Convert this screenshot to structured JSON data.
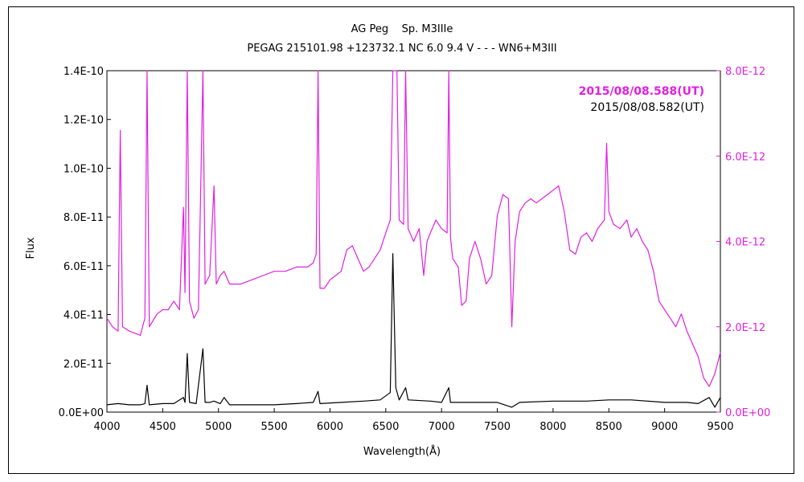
{
  "chart_data": {
    "type": "line",
    "title": "AG Peg    Sp. M3IIIe",
    "subtitle": "PEGAG 215101.98 +123732.1 NC 6.0 9.4 V - - - WN6+M3III",
    "xlabel": "Wavelength(Å)",
    "ylabel": "Flux",
    "xlim": [
      4000,
      9500
    ],
    "ylim_left": [
      0,
      1.4e-10
    ],
    "ylim_right": [
      0,
      8e-12
    ],
    "x_ticks": [
      "4000",
      "4500",
      "5000",
      "5500",
      "6000",
      "6500",
      "7000",
      "7500",
      "8000",
      "8500",
      "9000",
      "9500"
    ],
    "y_ticks_left": [
      "0.0E+00",
      "2.0E-11",
      "4.0E-11",
      "6.0E-11",
      "8.0E-11",
      "1.0E-10",
      "1.2E-10",
      "1.4E-10"
    ],
    "y_ticks_right": [
      "0.0E+00",
      "2.0E-12",
      "4.0E-12",
      "6.0E-12",
      "8.0E-12"
    ],
    "grid": false,
    "legend_position": "top-right",
    "colors": {
      "magenta": "#e020e0",
      "black": "#000000"
    },
    "series": [
      {
        "name": "2015/08/08.588(UT)",
        "axis": "right",
        "color": "#e020e0",
        "points": [
          [
            4000,
            2.2e-12
          ],
          [
            4050,
            2e-12
          ],
          [
            4100,
            1.9e-12
          ],
          [
            4120,
            6.6e-12
          ],
          [
            4140,
            2e-12
          ],
          [
            4200,
            1.9e-12
          ],
          [
            4300,
            1.8e-12
          ],
          [
            4340,
            2.2e-12
          ],
          [
            4360,
            8e-12
          ],
          [
            4380,
            2e-12
          ],
          [
            4450,
            2.3e-12
          ],
          [
            4500,
            2.4e-12
          ],
          [
            4550,
            2.4e-12
          ],
          [
            4600,
            2.6e-12
          ],
          [
            4650,
            2.4e-12
          ],
          [
            4686,
            4.8e-12
          ],
          [
            4700,
            2.8e-12
          ],
          [
            4720,
            8e-12
          ],
          [
            4740,
            2.6e-12
          ],
          [
            4780,
            2.2e-12
          ],
          [
            4820,
            2.4e-12
          ],
          [
            4861,
            8e-12
          ],
          [
            4880,
            3e-12
          ],
          [
            4921,
            3.2e-12
          ],
          [
            4960,
            5.3e-12
          ],
          [
            4980,
            3e-12
          ],
          [
            5016,
            3.2e-12
          ],
          [
            5050,
            3.3e-12
          ],
          [
            5100,
            3e-12
          ],
          [
            5200,
            3e-12
          ],
          [
            5300,
            3.1e-12
          ],
          [
            5400,
            3.2e-12
          ],
          [
            5500,
            3.3e-12
          ],
          [
            5600,
            3.3e-12
          ],
          [
            5700,
            3.4e-12
          ],
          [
            5800,
            3.4e-12
          ],
          [
            5850,
            3.5e-12
          ],
          [
            5876,
            3.7e-12
          ],
          [
            5893,
            8e-12
          ],
          [
            5910,
            2.9e-12
          ],
          [
            5950,
            2.9e-12
          ],
          [
            6000,
            3.1e-12
          ],
          [
            6050,
            3.2e-12
          ],
          [
            6100,
            3.3e-12
          ],
          [
            6150,
            3.8e-12
          ],
          [
            6200,
            3.9e-12
          ],
          [
            6250,
            3.6e-12
          ],
          [
            6300,
            3.3e-12
          ],
          [
            6350,
            3.4e-12
          ],
          [
            6400,
            3.6e-12
          ],
          [
            6450,
            3.8e-12
          ],
          [
            6500,
            4.2e-12
          ],
          [
            6540,
            4.5e-12
          ],
          [
            6563,
            8e-12
          ],
          [
            6600,
            8e-12
          ],
          [
            6620,
            4.5e-12
          ],
          [
            6660,
            4.4e-12
          ],
          [
            6678,
            8e-12
          ],
          [
            6700,
            4.3e-12
          ],
          [
            6750,
            4e-12
          ],
          [
            6800,
            4.3e-12
          ],
          [
            6840,
            3.2e-12
          ],
          [
            6870,
            4e-12
          ],
          [
            6900,
            4.2e-12
          ],
          [
            6950,
            4.5e-12
          ],
          [
            7000,
            4.3e-12
          ],
          [
            7050,
            4.2e-12
          ],
          [
            7065,
            8e-12
          ],
          [
            7080,
            4.1e-12
          ],
          [
            7100,
            3.6e-12
          ],
          [
            7150,
            3.4e-12
          ],
          [
            7180,
            2.5e-12
          ],
          [
            7220,
            2.6e-12
          ],
          [
            7250,
            3.6e-12
          ],
          [
            7300,
            4e-12
          ],
          [
            7350,
            3.6e-12
          ],
          [
            7400,
            3e-12
          ],
          [
            7450,
            3.2e-12
          ],
          [
            7500,
            4.6e-12
          ],
          [
            7550,
            5.1e-12
          ],
          [
            7600,
            5e-12
          ],
          [
            7630,
            2e-12
          ],
          [
            7660,
            4e-12
          ],
          [
            7700,
            4.7e-12
          ],
          [
            7750,
            4.9e-12
          ],
          [
            7800,
            5e-12
          ],
          [
            7850,
            4.9e-12
          ],
          [
            7900,
            5e-12
          ],
          [
            7950,
            5.1e-12
          ],
          [
            8000,
            5.2e-12
          ],
          [
            8050,
            5.3e-12
          ],
          [
            8100,
            4.7e-12
          ],
          [
            8150,
            3.8e-12
          ],
          [
            8200,
            3.7e-12
          ],
          [
            8250,
            4.1e-12
          ],
          [
            8300,
            4.2e-12
          ],
          [
            8350,
            4e-12
          ],
          [
            8400,
            4.3e-12
          ],
          [
            8460,
            4.5e-12
          ],
          [
            8480,
            6.3e-12
          ],
          [
            8500,
            4.7e-12
          ],
          [
            8542,
            4.4e-12
          ],
          [
            8600,
            4.3e-12
          ],
          [
            8662,
            4.5e-12
          ],
          [
            8700,
            4.1e-12
          ],
          [
            8750,
            4.3e-12
          ],
          [
            8800,
            4e-12
          ],
          [
            8850,
            3.8e-12
          ],
          [
            8900,
            3.3e-12
          ],
          [
            8950,
            2.6e-12
          ],
          [
            9000,
            2.4e-12
          ],
          [
            9050,
            2.2e-12
          ],
          [
            9100,
            2e-12
          ],
          [
            9150,
            2.3e-12
          ],
          [
            9200,
            1.9e-12
          ],
          [
            9250,
            1.6e-12
          ],
          [
            9300,
            1.3e-12
          ],
          [
            9350,
            8e-13
          ],
          [
            9400,
            6e-13
          ],
          [
            9450,
            9e-13
          ],
          [
            9500,
            1.4e-12
          ]
        ]
      },
      {
        "name": "2015/08/08.582(UT)",
        "axis": "left",
        "color": "#000000",
        "points": [
          [
            4000,
            3e-12
          ],
          [
            4100,
            3.5e-12
          ],
          [
            4200,
            3e-12
          ],
          [
            4300,
            3e-12
          ],
          [
            4340,
            3.5e-12
          ],
          [
            4360,
            1.1e-11
          ],
          [
            4380,
            3e-12
          ],
          [
            4500,
            3.5e-12
          ],
          [
            4600,
            3.5e-12
          ],
          [
            4686,
            6e-12
          ],
          [
            4700,
            4e-12
          ],
          [
            4720,
            2.4e-11
          ],
          [
            4740,
            4e-12
          ],
          [
            4800,
            3.5e-12
          ],
          [
            4861,
            2.6e-11
          ],
          [
            4880,
            4e-12
          ],
          [
            4921,
            4e-12
          ],
          [
            4960,
            4.5e-12
          ],
          [
            5016,
            3.5e-12
          ],
          [
            5050,
            6e-12
          ],
          [
            5100,
            3e-12
          ],
          [
            5300,
            3e-12
          ],
          [
            5500,
            3e-12
          ],
          [
            5700,
            3.5e-12
          ],
          [
            5850,
            4e-12
          ],
          [
            5893,
            8.5e-12
          ],
          [
            5910,
            3.5e-12
          ],
          [
            6100,
            4e-12
          ],
          [
            6300,
            4.5e-12
          ],
          [
            6450,
            5e-12
          ],
          [
            6540,
            8e-12
          ],
          [
            6563,
            6.5e-11
          ],
          [
            6590,
            1e-11
          ],
          [
            6620,
            5e-12
          ],
          [
            6678,
            1e-11
          ],
          [
            6700,
            5e-12
          ],
          [
            6900,
            4.5e-12
          ],
          [
            7000,
            4e-12
          ],
          [
            7065,
            1e-11
          ],
          [
            7080,
            4e-12
          ],
          [
            7300,
            4e-12
          ],
          [
            7500,
            4e-12
          ],
          [
            7630,
            2e-12
          ],
          [
            7700,
            4e-12
          ],
          [
            8000,
            4.5e-12
          ],
          [
            8300,
            4.5e-12
          ],
          [
            8500,
            5e-12
          ],
          [
            8700,
            5e-12
          ],
          [
            9000,
            4e-12
          ],
          [
            9200,
            4e-12
          ],
          [
            9300,
            3.5e-12
          ],
          [
            9400,
            6e-12
          ],
          [
            9450,
            2e-12
          ],
          [
            9500,
            6e-12
          ]
        ]
      }
    ]
  }
}
